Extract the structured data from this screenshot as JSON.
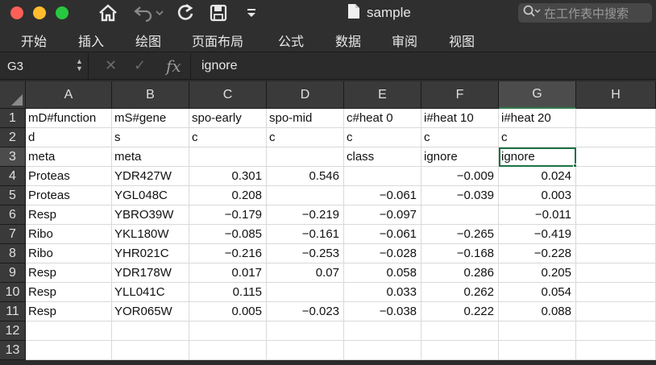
{
  "window": {
    "title": "sample",
    "search_placeholder": "在工作表中搜索"
  },
  "menu": [
    "开始",
    "插入",
    "绘图",
    "页面布局",
    "公式",
    "数据",
    "审阅",
    "视图"
  ],
  "formula_bar": {
    "cell_ref": "G3",
    "fx": "fx",
    "content": "ignore"
  },
  "columns": [
    "A",
    "B",
    "C",
    "D",
    "E",
    "F",
    "G",
    "H"
  ],
  "selected_column": "G",
  "selected_row": 3,
  "rows": [
    {
      "num": "1",
      "cells": [
        "mD#function",
        "mS#gene",
        "spo-early",
        "spo-mid",
        "c#heat 0",
        "i#heat 10",
        "i#heat 20",
        ""
      ]
    },
    {
      "num": "2",
      "cells": [
        "d",
        "s",
        "c",
        "c",
        "c",
        "c",
        "c",
        ""
      ]
    },
    {
      "num": "3",
      "cells": [
        "meta",
        "meta",
        "",
        "",
        "class",
        "ignore",
        "ignore",
        ""
      ]
    },
    {
      "num": "4",
      "cells": [
        "Proteas",
        "YDR427W",
        "0.301",
        "0.546",
        "",
        "−0.009",
        "0.024",
        ""
      ]
    },
    {
      "num": "5",
      "cells": [
        "Proteas",
        "YGL048C",
        "0.208",
        "",
        "−0.061",
        "−0.039",
        "0.003",
        ""
      ]
    },
    {
      "num": "6",
      "cells": [
        "Resp",
        "YBRO39W",
        "−0.179",
        "−0.219",
        "−0.097",
        "",
        "−0.011",
        ""
      ]
    },
    {
      "num": "7",
      "cells": [
        "Ribo",
        "YKL180W",
        "−0.085",
        "−0.161",
        "−0.061",
        "−0.265",
        "−0.419",
        ""
      ]
    },
    {
      "num": "8",
      "cells": [
        "Ribo",
        "YHR021C",
        "−0.216",
        "−0.253",
        "−0.028",
        "−0.168",
        "−0.228",
        ""
      ]
    },
    {
      "num": "9",
      "cells": [
        "Resp",
        "YDR178W",
        "0.017",
        "0.07",
        "0.058",
        "0.286",
        "0.205",
        ""
      ]
    },
    {
      "num": "10",
      "cells": [
        "Resp",
        "YLL041C",
        "0.115",
        "",
        "0.033",
        "0.262",
        "0.054",
        ""
      ]
    },
    {
      "num": "11",
      "cells": [
        "Resp",
        "YOR065W",
        "0.005",
        "−0.023",
        "−0.038",
        "0.222",
        "0.088",
        ""
      ]
    },
    {
      "num": "12",
      "cells": [
        "",
        "",
        "",
        "",
        "",
        "",
        "",
        ""
      ]
    },
    {
      "num": "13",
      "cells": [
        "",
        "",
        "",
        "",
        "",
        "",
        "",
        ""
      ]
    }
  ],
  "colors": {
    "accent_green": "#1e7145",
    "titlebar": "#2f2f2f"
  }
}
